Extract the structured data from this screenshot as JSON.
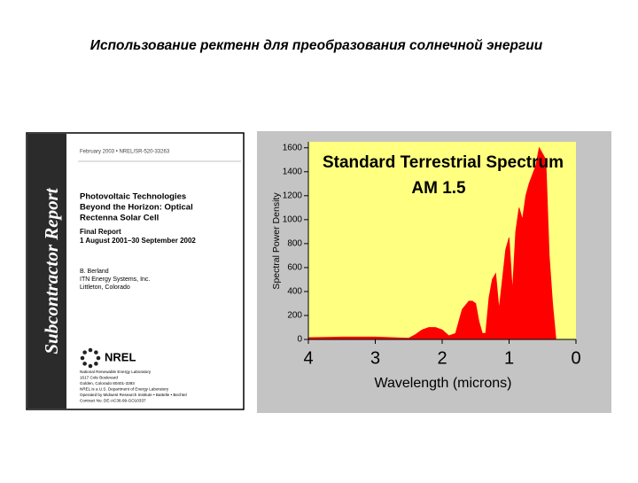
{
  "slide_title": "Использование ректенн для преобразования солнечной энергии",
  "report_cover": {
    "side_band": "Subcontractor Report",
    "header": "February 2003 • NREL/SR-520-33263",
    "title_lines": [
      "Photovoltaic Technologies",
      "Beyond the Horizon: Optical",
      "Rectenna Solar Cell"
    ],
    "report_lines": [
      "Final Report",
      "1 August 2001–30 September 2002"
    ],
    "author_lines": [
      "B. Berland",
      "ITN Energy Systems, Inc.",
      "Littleton, Colorado"
    ],
    "logo": "NREL",
    "footer_lines": [
      "National Renewable Energy Laboratory",
      "1617 Cole Boulevard",
      "Golden, Colorado 80401-3393",
      "NREL is a U.S. Department of Energy Laboratory",
      "Operated by Midwest Research Institute • Battelle • Bechtel",
      "Contract No. DE-AC36-99-GO10337"
    ]
  },
  "chart_data": {
    "type": "area",
    "title": "Standard Terrestrial Spectrum",
    "subtitle": "AM 1.5",
    "x_label": "Wavelength (microns)",
    "y_label": "Spectral Power Density",
    "color": "#ff0000",
    "x": [
      0.3,
      0.35,
      0.4,
      0.45,
      0.5,
      0.55,
      0.6,
      0.7,
      0.75,
      0.8,
      0.85,
      0.9,
      0.95,
      1.0,
      1.05,
      1.1,
      1.15,
      1.2,
      1.25,
      1.3,
      1.35,
      1.4,
      1.45,
      1.5,
      1.55,
      1.6,
      1.7,
      1.8,
      1.9,
      2.0,
      2.1,
      2.2,
      2.3,
      2.4,
      2.5,
      3.0,
      3.5,
      4.0
    ],
    "values": [
      0,
      300,
      700,
      1500,
      1550,
      1600,
      1450,
      1300,
      1200,
      1000,
      1100,
      900,
      400,
      850,
      750,
      500,
      250,
      550,
      500,
      350,
      50,
      50,
      150,
      300,
      320,
      320,
      250,
      50,
      30,
      80,
      100,
      100,
      80,
      40,
      10,
      20,
      20,
      15
    ],
    "xlim": [
      4,
      0
    ],
    "xticks": [
      4,
      3,
      2,
      1,
      0
    ],
    "ylim": [
      0,
      1650
    ],
    "yticks": [
      0,
      200,
      400,
      600,
      800,
      1000,
      1200,
      1400,
      1600
    ]
  }
}
